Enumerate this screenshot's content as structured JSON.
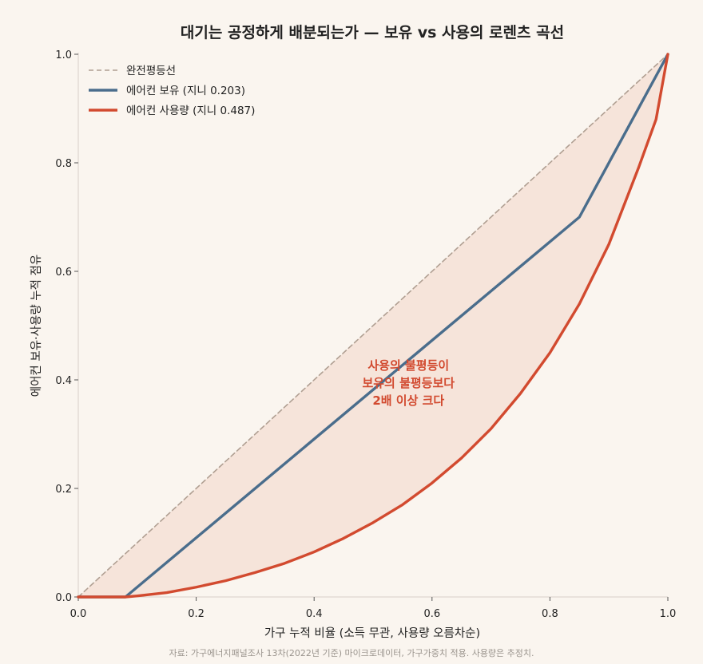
{
  "chart_data": {
    "type": "line",
    "title": "대기는 공정하게 배분되는가 — 보유 vs 사용의 로렌츠 곡선",
    "xlabel": "가구 누적 비율 (소득 무관, 사용량 오름차순)",
    "ylabel": "에어컨 보유·사용량 누적 점유",
    "xlim": [
      0,
      1
    ],
    "ylim": [
      0,
      1
    ],
    "xticks": [
      "0.0",
      "0.2",
      "0.4",
      "0.6",
      "0.8",
      "1.0"
    ],
    "yticks": [
      "0.0",
      "0.2",
      "0.4",
      "0.6",
      "0.8",
      "1.0"
    ],
    "grid": false,
    "legend_position": "top-left",
    "series": [
      {
        "name": "완전평등선",
        "style": "dashed",
        "color": "#b09f92",
        "points": [
          [
            0,
            0
          ],
          [
            1,
            1
          ]
        ]
      },
      {
        "name": "에어컨 보유 (지니 0.203)",
        "style": "solid",
        "color": "#4a6d8c",
        "points": [
          [
            0,
            0
          ],
          [
            0.08,
            0
          ],
          [
            0.85,
            0.7
          ],
          [
            1,
            1
          ]
        ]
      },
      {
        "name": "에어컨 사용량 (지니 0.487)",
        "style": "solid",
        "color": "#d24a2f",
        "points": [
          [
            0,
            0
          ],
          [
            0.08,
            0
          ],
          [
            0.1,
            0.002
          ],
          [
            0.15,
            0.008
          ],
          [
            0.2,
            0.018
          ],
          [
            0.25,
            0.03
          ],
          [
            0.3,
            0.045
          ],
          [
            0.35,
            0.062
          ],
          [
            0.4,
            0.083
          ],
          [
            0.45,
            0.108
          ],
          [
            0.5,
            0.137
          ],
          [
            0.55,
            0.17
          ],
          [
            0.6,
            0.21
          ],
          [
            0.65,
            0.256
          ],
          [
            0.7,
            0.31
          ],
          [
            0.75,
            0.375
          ],
          [
            0.8,
            0.45
          ],
          [
            0.85,
            0.54
          ],
          [
            0.9,
            0.65
          ],
          [
            0.95,
            0.79
          ],
          [
            0.98,
            0.88
          ],
          [
            1,
            1
          ]
        ]
      }
    ],
    "fill_between": {
      "upper": "완전평등선",
      "lower": "에어컨 사용량 (지니 0.487)",
      "color": "#f6e4da"
    },
    "annotation": {
      "lines": [
        "사용의 불평등이",
        "보유의 불평등보다",
        "2배 이상 크다"
      ],
      "x": 0.56,
      "y": 0.39,
      "color": "#d24a2f"
    },
    "source": "자료: 가구에너지패널조사 13차(2022년 기준) 마이크로데이터, 가구가중치 적용. 사용량은 추정치."
  }
}
